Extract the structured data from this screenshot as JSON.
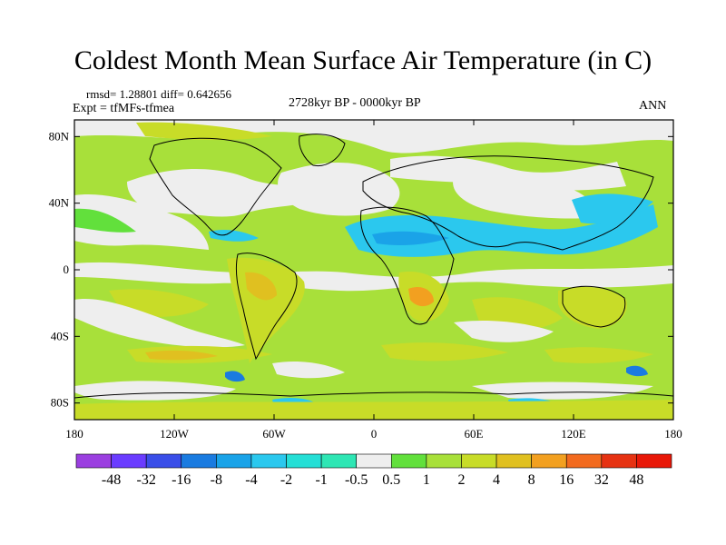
{
  "title": "Coldest Month Mean Surface Air Temperature (in C)",
  "stats": "rmsd= 1.28801  diff= 0.642656",
  "experiment": "Expt = tfMFs-tfmea",
  "period": "2728kyr BP - 0000kyr BP",
  "season": "ANN",
  "x_ticks": [
    "180",
    "120W",
    "60W",
    "0",
    "60E",
    "120E",
    "180"
  ],
  "y_ticks": [
    "80N",
    "40N",
    "0",
    "40S",
    "80S"
  ],
  "colorbar": {
    "labels": [
      "-48",
      "-32",
      "-16",
      "-8",
      "-4",
      "-2",
      "-1",
      "-0.5",
      "0.5",
      "1",
      "2",
      "4",
      "8",
      "16",
      "32",
      "48"
    ],
    "colors": [
      "#9b3fe0",
      "#6a3cff",
      "#3a4ee8",
      "#1a7be0",
      "#1aa3e8",
      "#2bc8ee",
      "#25dfd6",
      "#2ee6b4",
      "#eeeeee",
      "#62e03c",
      "#a8e03a",
      "#c8dc28",
      "#e0c020",
      "#f2a020",
      "#f26a1e",
      "#e63212",
      "#e81808"
    ]
  },
  "palette": {
    "ocean_green": "#a8e03a",
    "neutral": "#eeeeee",
    "warm": "#c8dc28",
    "warmer": "#e0c020",
    "hot": "#f2a020",
    "cool": "#2bc8ee",
    "cooler": "#1aa3e8",
    "deep_cool": "#1a7be0",
    "light_green": "#62e03c"
  }
}
